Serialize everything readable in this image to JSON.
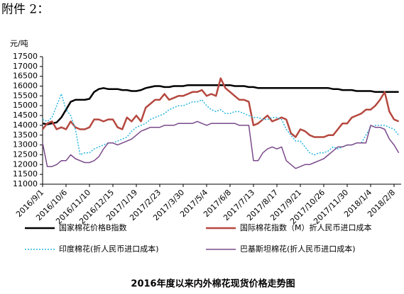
{
  "header": "附件 2：",
  "chart_data": {
    "type": "line",
    "title": "2016年度以来内外棉花现货价格走势图",
    "y_unit": "元/吨",
    "categories": [
      "2016/9/1",
      null,
      null,
      null,
      null,
      "2016/10/6",
      null,
      null,
      null,
      null,
      "2016/11/10",
      null,
      null,
      null,
      null,
      "2016/12/15",
      null,
      null,
      null,
      null,
      "2017/1/19",
      null,
      null,
      null,
      null,
      "2017/2/23",
      null,
      null,
      null,
      null,
      "2017/3/30",
      null,
      null,
      null,
      null,
      "2017/5/4",
      null,
      null,
      null,
      null,
      "2017/6/8",
      null,
      null,
      null,
      null,
      "2017/7/13",
      null,
      null,
      null,
      null,
      "2017/8/17",
      null,
      null,
      null,
      null,
      "2017/9/21",
      null,
      null,
      null,
      null,
      "2017/10/26",
      null,
      null,
      null,
      null,
      "2017/11/30",
      null,
      null,
      null,
      null,
      "2018/1/4",
      null,
      null,
      null,
      null,
      "2018/2/8",
      null
    ],
    "ylim": [
      11000,
      17500
    ],
    "yticks": [
      11000,
      11500,
      12000,
      12500,
      13000,
      13500,
      14000,
      14500,
      15000,
      15500,
      16000,
      16500,
      17000,
      17500
    ],
    "series": [
      {
        "name": "国家棉花价格B指数",
        "color": "#000000",
        "width": 2.5,
        "style": "solid",
        "values": [
          14100,
          14050,
          14100,
          14150,
          14400,
          14800,
          15200,
          15300,
          15300,
          15300,
          15350,
          15700,
          15850,
          15900,
          15850,
          15850,
          15850,
          15800,
          15800,
          15750,
          15750,
          15800,
          15900,
          15950,
          16000,
          16000,
          15950,
          15950,
          16000,
          16000,
          16000,
          16050,
          16050,
          16050,
          16050,
          16050,
          16050,
          16050,
          16050,
          16050,
          16050,
          16000,
          16000,
          16000,
          15950,
          15950,
          15900,
          15900,
          15900,
          15900,
          15900,
          15900,
          15900,
          15900,
          15900,
          15900,
          15900,
          15900,
          15900,
          15900,
          15900,
          15900,
          15850,
          15850,
          15800,
          15800,
          15800,
          15750,
          15750,
          15750,
          15750,
          15700,
          15700,
          15700,
          15700,
          15700,
          15700
        ]
      },
      {
        "name": "国际棉花指数（M）折人民币进口成本",
        "color": "#b5483f",
        "width": 2.5,
        "style": "solid",
        "values": [
          13800,
          14100,
          14200,
          13800,
          13900,
          13800,
          14200,
          13900,
          13800,
          13800,
          13900,
          14300,
          14300,
          14200,
          14300,
          14300,
          13900,
          13800,
          14400,
          14200,
          14500,
          14200,
          14900,
          15100,
          15300,
          15300,
          15600,
          15300,
          15400,
          15500,
          15500,
          15600,
          15700,
          15700,
          15800,
          15500,
          15600,
          15500,
          16400,
          15900,
          15700,
          15500,
          15300,
          15300,
          15200,
          14000,
          14100,
          14300,
          14500,
          14200,
          14300,
          14400,
          14300,
          13600,
          13400,
          13800,
          13700,
          13500,
          13400,
          13400,
          13400,
          13500,
          13500,
          13800,
          14100,
          14100,
          14400,
          14500,
          14600,
          14800,
          14800,
          15000,
          15300,
          15700,
          14700,
          14300,
          14200
        ]
      },
      {
        "name": "印度棉花(折人民币进口成本)",
        "color": "#29b6e0",
        "width": 1.5,
        "style": "dotted",
        "values": [
          14300,
          14200,
          14400,
          15000,
          15600,
          14800,
          14500,
          13800,
          12500,
          12600,
          12600,
          12800,
          12900,
          13000,
          13100,
          13100,
          13200,
          13300,
          13400,
          13700,
          13900,
          14000,
          14100,
          14300,
          14400,
          14500,
          14600,
          14800,
          14900,
          15000,
          15000,
          15100,
          15200,
          15200,
          15300,
          15000,
          14800,
          14700,
          14800,
          14600,
          14600,
          14700,
          14700,
          14600,
          14500,
          14400,
          14400,
          14300,
          14300,
          14400,
          14400,
          14300,
          13800,
          13500,
          13200,
          13200,
          12900,
          12600,
          12500,
          12600,
          12600,
          12700,
          12900,
          12800,
          12900,
          13000,
          13000,
          13100,
          13100,
          13500,
          13900,
          14000,
          14000,
          14000,
          13900,
          13800,
          13500
        ]
      },
      {
        "name": "巴基斯坦棉花(折人民币进口成本)",
        "color": "#7a4a8a",
        "width": 1.5,
        "style": "solid",
        "values": [
          13100,
          11900,
          11900,
          12000,
          12200,
          12200,
          12500,
          12300,
          12200,
          12100,
          12100,
          12200,
          12400,
          12800,
          13100,
          13100,
          13000,
          13100,
          13200,
          13300,
          13500,
          13700,
          13800,
          13900,
          13900,
          13900,
          14000,
          14000,
          14000,
          14100,
          14100,
          14100,
          14100,
          14200,
          14100,
          14000,
          14100,
          14100,
          14100,
          14100,
          14100,
          14100,
          14000,
          14000,
          14000,
          12200,
          12200,
          12600,
          12800,
          12900,
          12800,
          12900,
          12200,
          12000,
          11800,
          11900,
          12000,
          12000,
          12100,
          12200,
          12300,
          12500,
          12700,
          12900,
          12900,
          13000,
          13000,
          13100,
          13100,
          13100,
          14000,
          13900,
          13900,
          13800,
          13300,
          13000,
          12600
        ]
      }
    ]
  }
}
